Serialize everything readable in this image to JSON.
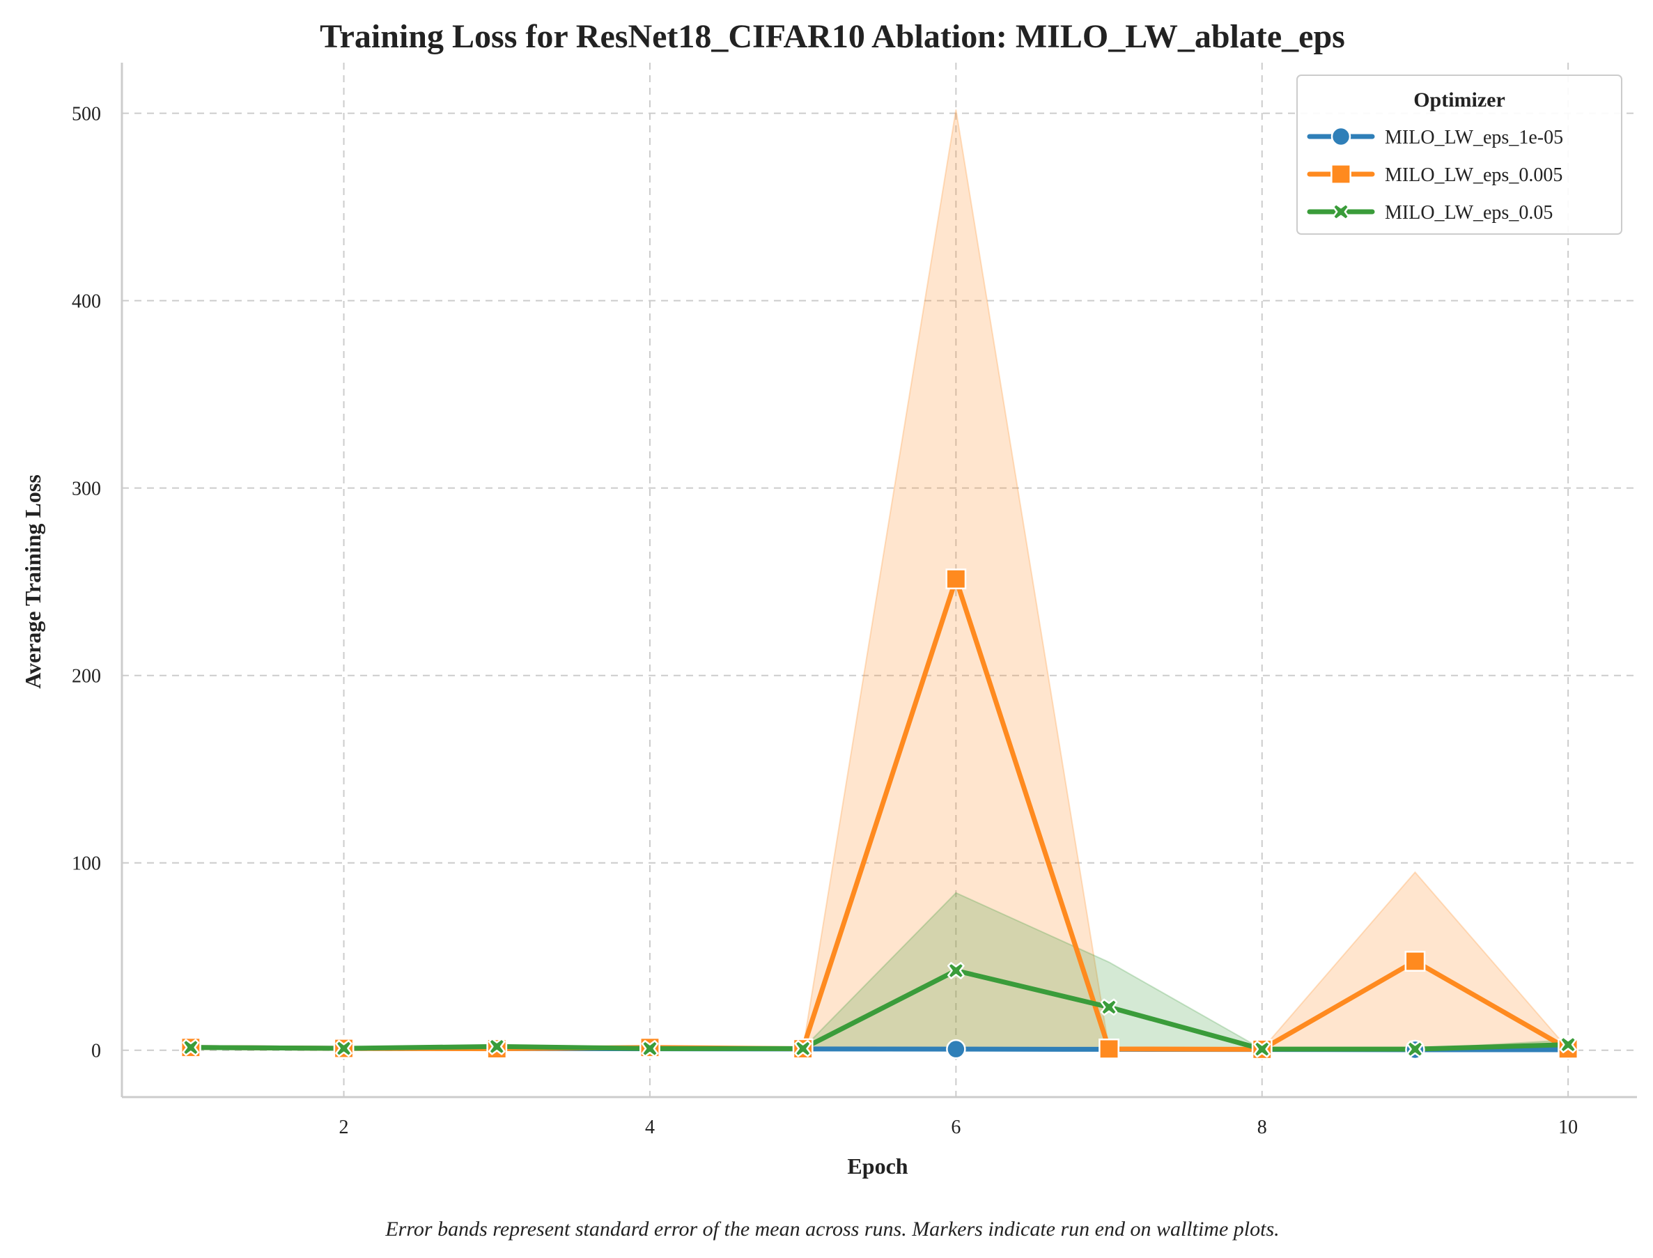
{
  "chart_data": {
    "type": "line",
    "title": "Training Loss for ResNet18_CIFAR10 Ablation: MILO_LW_ablate_eps",
    "xlabel": "Epoch",
    "ylabel": "Average Training Loss",
    "xlim": [
      0.55,
      10.45
    ],
    "ylim": [
      -25,
      527
    ],
    "x_ticks": [
      2,
      4,
      6,
      8,
      10
    ],
    "y_ticks": [
      0,
      100,
      200,
      300,
      400,
      500
    ],
    "grid": true,
    "legend": {
      "title": "Optimizer",
      "placement": "top-right"
    },
    "x": [
      1,
      2,
      3,
      4,
      5,
      6,
      7,
      8,
      9,
      10
    ],
    "series": [
      {
        "name": "MILO_LW_eps_1e-05",
        "color": "#2f7fb8",
        "marker": "circle",
        "values": [
          1.5,
          1.0,
          0.9,
          0.8,
          0.7,
          0.6,
          0.5,
          0.4,
          0.3,
          0.3
        ],
        "band_lower": [
          1.5,
          1.0,
          0.9,
          0.8,
          0.7,
          0.6,
          0.5,
          0.4,
          0.3,
          0.3
        ],
        "band_upper": [
          1.5,
          1.0,
          0.9,
          0.8,
          0.7,
          0.6,
          0.5,
          0.4,
          0.3,
          0.3
        ]
      },
      {
        "name": "MILO_LW_eps_0.005",
        "color": "#ff8a1f",
        "marker": "square",
        "values": [
          1.5,
          1.0,
          0.8,
          1.5,
          0.8,
          251.5,
          0.7,
          0.5,
          47.5,
          0.7
        ],
        "band_lower": [
          1.5,
          1.0,
          0.8,
          1.5,
          0.8,
          0.8,
          0.7,
          0.5,
          0.5,
          0.7
        ],
        "band_upper": [
          1.5,
          1.0,
          0.8,
          1.5,
          0.8,
          502.0,
          0.7,
          0.5,
          95.0,
          0.7
        ]
      },
      {
        "name": "MILO_LW_eps_0.05",
        "color": "#3a9c3a",
        "marker": "x",
        "values": [
          1.5,
          1.0,
          2.0,
          0.9,
          0.9,
          42.5,
          23.0,
          0.6,
          0.6,
          3.0
        ],
        "band_lower": [
          1.5,
          1.0,
          2.0,
          0.9,
          0.9,
          0.9,
          0.9,
          0.6,
          0.6,
          0.6
        ],
        "band_upper": [
          1.5,
          1.0,
          2.0,
          0.9,
          0.9,
          84.0,
          47.0,
          0.6,
          0.6,
          5.5
        ]
      }
    ]
  },
  "caption": "Error bands represent standard error of the mean across runs. Markers indicate run end on walltime plots."
}
